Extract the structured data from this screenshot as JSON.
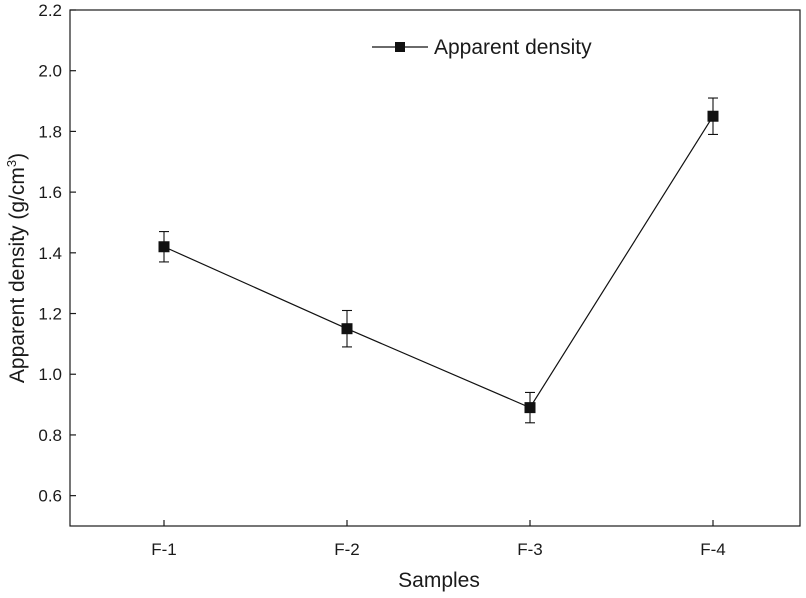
{
  "chart_data": {
    "type": "line",
    "categories": [
      "F-1",
      "F-2",
      "F-3",
      "F-4"
    ],
    "series": [
      {
        "name": "Apparent density",
        "values": [
          1.42,
          1.15,
          0.89,
          1.85
        ],
        "error": [
          0.05,
          0.06,
          0.05,
          0.06
        ],
        "color": "#111111",
        "marker": "square"
      }
    ],
    "xlabel": "Samples",
    "ylabel": "Apparent density (g/cm",
    "ylabel_superscript": "3",
    "ylabel_suffix": ")",
    "ylim": [
      0.5,
      2.2
    ],
    "yticks": [
      "0.6",
      "0.8",
      "1.0",
      "1.2",
      "1.4",
      "1.6",
      "1.8",
      "2.0",
      "2.2"
    ],
    "grid": false,
    "legend_position": "top-right"
  }
}
